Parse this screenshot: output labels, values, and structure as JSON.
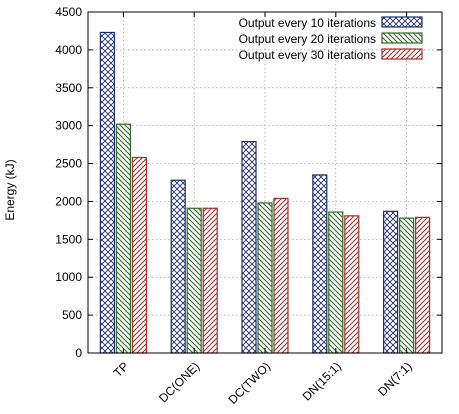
{
  "chart_data": {
    "type": "bar",
    "title": "",
    "xlabel": "",
    "ylabel": "Energy (kJ)",
    "ylim": [
      0,
      4500
    ],
    "yticks": [
      0,
      500,
      1000,
      1500,
      2000,
      2500,
      3000,
      3500,
      4000,
      4500
    ],
    "grid": true,
    "legend_position": "top-right",
    "categories": [
      "TP",
      "DC(ONE)",
      "DC(TWO)",
      "DN(15:1)",
      "DN(7:1)"
    ],
    "series": [
      {
        "name": "Output every 10 iterations",
        "color": "#1f2f6b",
        "pattern": "crosshatch",
        "values": [
          4230,
          2280,
          2790,
          2350,
          1870
        ]
      },
      {
        "name": "Output every 20 iterations",
        "color": "#2e6b25",
        "pattern": "diagonal-back",
        "values": [
          3020,
          1910,
          1980,
          1860,
          1780
        ]
      },
      {
        "name": "Output every 30 iterations",
        "color": "#a3302a",
        "pattern": "diagonal-forward",
        "values": [
          2580,
          1910,
          2040,
          1810,
          1790
        ]
      }
    ]
  }
}
